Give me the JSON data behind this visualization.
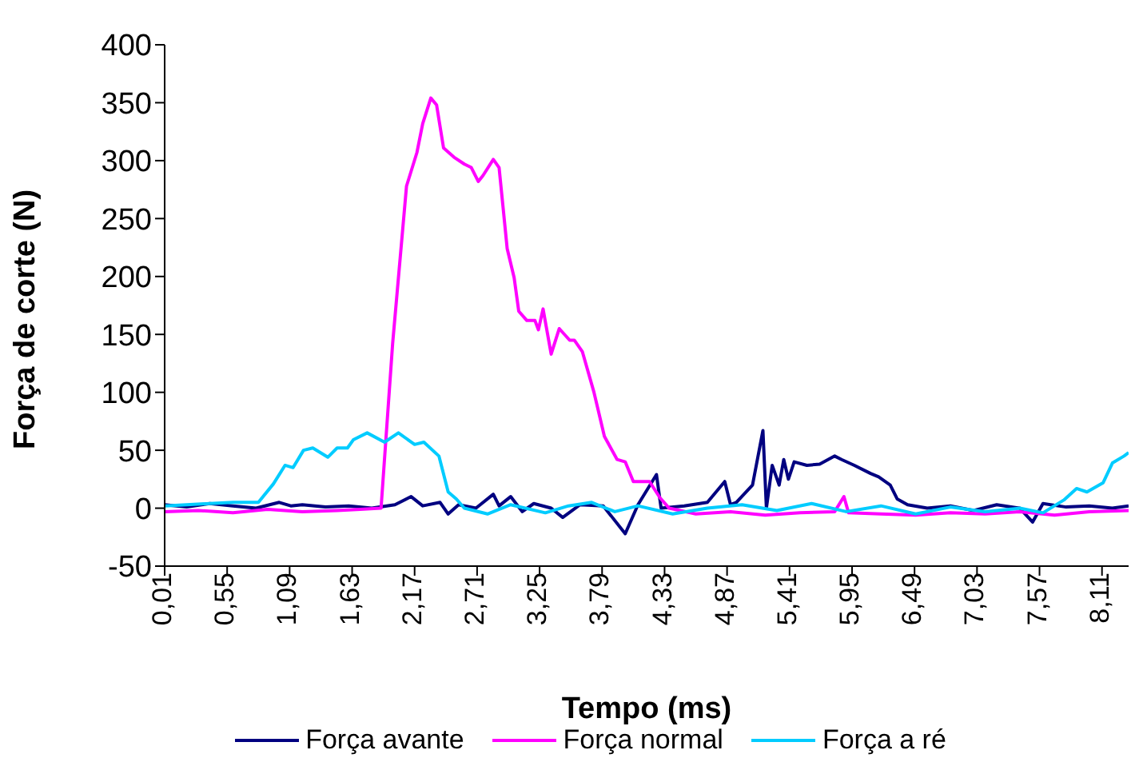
{
  "chart_data": {
    "type": "line",
    "xlabel": "Tempo (ms)",
    "ylabel": "Força de corte (N)",
    "xlim": [
      0.01,
      8.34
    ],
    "ylim": [
      -50,
      400
    ],
    "yticks": [
      -50,
      0,
      50,
      100,
      150,
      200,
      250,
      300,
      350,
      400
    ],
    "xticks": [
      {
        "value": 0.01,
        "label": "0,01"
      },
      {
        "value": 0.55,
        "label": "0,55"
      },
      {
        "value": 1.09,
        "label": "1,09"
      },
      {
        "value": 1.63,
        "label": "1,63"
      },
      {
        "value": 2.17,
        "label": "2,17"
      },
      {
        "value": 2.71,
        "label": "2,71"
      },
      {
        "value": 3.25,
        "label": "3,25"
      },
      {
        "value": 3.79,
        "label": "3,79"
      },
      {
        "value": 4.33,
        "label": "4,33"
      },
      {
        "value": 4.87,
        "label": "4,87"
      },
      {
        "value": 5.41,
        "label": "5,41"
      },
      {
        "value": 5.95,
        "label": "5,95"
      },
      {
        "value": 6.49,
        "label": "6,49"
      },
      {
        "value": 7.03,
        "label": "7,03"
      },
      {
        "value": 7.57,
        "label": "7,57"
      },
      {
        "value": 8.11,
        "label": "8,11"
      }
    ],
    "grid": false,
    "legend": "bottom",
    "marker": "none",
    "line_style": "solid",
    "series": [
      {
        "name": "Força avante",
        "color": "#000080",
        "x": [
          0.01,
          0.2,
          0.4,
          0.6,
          0.8,
          1.0,
          1.1,
          1.2,
          1.4,
          1.6,
          1.8,
          2.0,
          2.14,
          2.24,
          2.39,
          2.46,
          2.55,
          2.7,
          2.85,
          2.9,
          3.0,
          3.1,
          3.2,
          3.35,
          3.45,
          3.6,
          3.8,
          3.99,
          4.1,
          4.26,
          4.3,
          4.5,
          4.7,
          4.85,
          4.9,
          4.95,
          5.09,
          5.18,
          5.21,
          5.26,
          5.32,
          5.36,
          5.4,
          5.45,
          5.56,
          5.67,
          5.8,
          5.86,
          5.97,
          6.11,
          6.18,
          6.28,
          6.34,
          6.43,
          6.6,
          6.8,
          7.0,
          7.2,
          7.4,
          7.51,
          7.6,
          7.8,
          8.0,
          8.2,
          8.34
        ],
        "values": [
          3,
          1,
          4,
          2,
          0,
          5,
          2,
          3,
          1,
          2,
          0,
          3,
          10,
          2,
          5,
          -5,
          3,
          0,
          12,
          2,
          10,
          -3,
          4,
          0,
          -8,
          3,
          2,
          -22,
          3,
          29,
          0,
          2,
          5,
          23,
          3,
          5,
          20,
          67,
          0,
          37,
          20,
          42,
          25,
          40,
          37,
          38,
          45,
          42,
          37,
          30,
          27,
          20,
          8,
          3,
          0,
          2,
          -2,
          3,
          0,
          -12,
          4,
          1,
          2,
          0,
          2
        ]
      },
      {
        "name": "Força normal",
        "color": "#ff00ff",
        "x": [
          0.01,
          0.3,
          0.6,
          0.9,
          1.2,
          1.5,
          1.7,
          1.88,
          1.98,
          2.1,
          2.19,
          2.24,
          2.31,
          2.36,
          2.42,
          2.51,
          2.6,
          2.66,
          2.72,
          2.76,
          2.85,
          2.9,
          2.97,
          3.03,
          3.07,
          3.14,
          3.21,
          3.24,
          3.28,
          3.35,
          3.42,
          3.51,
          3.55,
          3.62,
          3.72,
          3.81,
          3.92,
          3.99,
          4.06,
          4.2,
          4.29,
          4.37,
          4.6,
          4.9,
          5.2,
          5.5,
          5.8,
          5.88,
          5.92,
          6.2,
          6.5,
          6.8,
          7.1,
          7.4,
          7.7,
          8.0,
          8.34
        ],
        "values": [
          -3,
          -2,
          -4,
          -1,
          -3,
          -2,
          -1,
          0,
          142,
          278,
          307,
          332,
          354,
          348,
          311,
          303,
          297,
          294,
          282,
          287,
          301,
          294,
          224,
          199,
          170,
          162,
          162,
          154,
          172,
          133,
          155,
          145,
          145,
          135,
          100,
          62,
          42,
          40,
          23,
          23,
          9,
          0,
          -5,
          -3,
          -6,
          -4,
          -3,
          10,
          -4,
          -5,
          -6,
          -4,
          -5,
          -3,
          -6,
          -3,
          -2
        ]
      },
      {
        "name": "Força a ré",
        "color": "#00ccff",
        "x": [
          0.01,
          0.2,
          0.4,
          0.6,
          0.82,
          0.95,
          1.05,
          1.12,
          1.21,
          1.29,
          1.42,
          1.5,
          1.59,
          1.64,
          1.76,
          1.91,
          2.03,
          2.17,
          2.25,
          2.38,
          2.46,
          2.53,
          2.6,
          2.8,
          3.0,
          3.3,
          3.5,
          3.7,
          3.9,
          4.1,
          4.4,
          4.7,
          5.0,
          5.3,
          5.6,
          5.9,
          6.2,
          6.5,
          6.8,
          7.1,
          7.4,
          7.6,
          7.78,
          7.89,
          7.98,
          8.12,
          8.2,
          8.3,
          8.34
        ],
        "values": [
          2,
          3,
          4,
          5,
          5,
          21,
          37,
          35,
          50,
          52,
          44,
          52,
          52,
          59,
          65,
          57,
          65,
          55,
          57,
          45,
          14,
          8,
          0,
          -5,
          3,
          -4,
          2,
          5,
          -3,
          2,
          -5,
          0,
          3,
          -2,
          4,
          -3,
          2,
          -5,
          1,
          -3,
          0,
          -4,
          7,
          17,
          14,
          22,
          39,
          45,
          48
        ]
      }
    ]
  }
}
